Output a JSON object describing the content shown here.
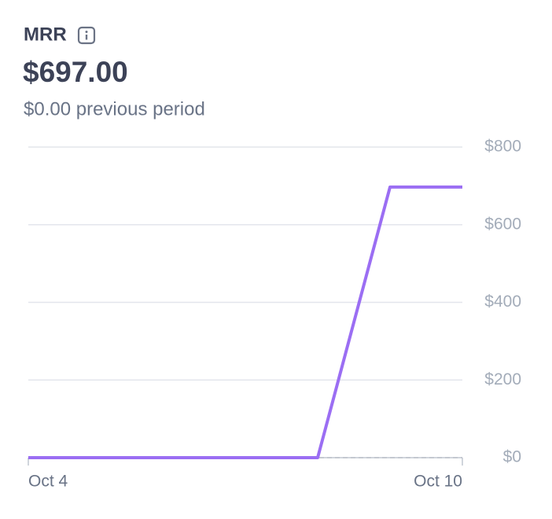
{
  "chart_data": {
    "type": "line",
    "title": "MRR",
    "headline": "$697.00",
    "subtitle": "$0.00 previous period",
    "categories": [
      "Oct 4",
      null,
      null,
      null,
      null,
      null,
      "Oct 10"
    ],
    "series": [
      {
        "color": "#c4c8d0",
        "dashed": true,
        "values": [
          0,
          0,
          0,
          0,
          0,
          0,
          0
        ]
      },
      {
        "color": "#9b6ef3",
        "dashed": false,
        "values": [
          0,
          0,
          0,
          0,
          0,
          697,
          697
        ]
      }
    ],
    "ylim": [
      0,
      800
    ],
    "yticks": [
      {
        "value": 0,
        "label": "$0"
      },
      {
        "value": 200,
        "label": "$200"
      },
      {
        "value": 400,
        "label": "$400"
      },
      {
        "value": 600,
        "label": "$600"
      },
      {
        "value": 800,
        "label": "$800"
      }
    ],
    "grid": true
  }
}
